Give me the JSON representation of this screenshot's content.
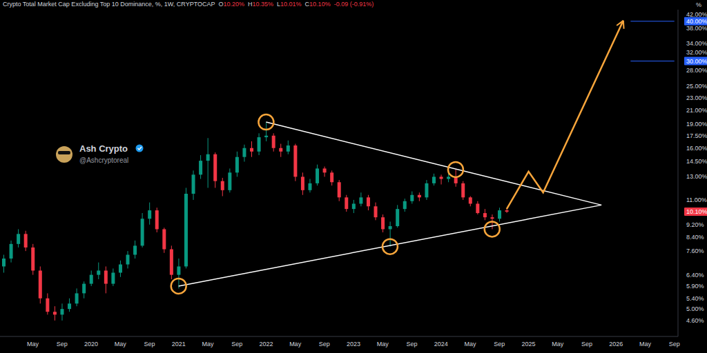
{
  "chart_data": {
    "type": "candlestick",
    "title": "Crypto Total Market Cap Excluding Top 10 Dominance, %, 1W, CRYPTOCAP",
    "header_values": [
      {
        "label": "O",
        "text": "10.20%"
      },
      {
        "label": "H",
        "text": "10.35%"
      },
      {
        "label": "L",
        "text": "10.01%"
      },
      {
        "label": "C",
        "text": "10.10%"
      },
      {
        "text": "-0.09 (-0.91%)"
      }
    ],
    "unit_label": "%",
    "watermark": {
      "name": "Ash Crypto",
      "handle": "@Ashcryptoreal"
    },
    "color": "#089981",
    "down_color": "#f23645",
    "log": "y",
    "grid": false,
    "x": [
      "2019-01",
      "2019-02",
      "2019-03",
      "2019-04",
      "2019-05",
      "2019-06",
      "2019-07",
      "2019-08",
      "2019-09",
      "2019-10",
      "2019-11",
      "2019-12",
      "2020-01",
      "2020-02",
      "2020-03",
      "2020-04",
      "2020-05",
      "2020-06",
      "2020-07",
      "2020-08",
      "2020-09",
      "2020-10",
      "2020-11",
      "2020-12",
      "2021-01",
      "2021-02",
      "2021-03",
      "2021-04",
      "2021-05",
      "2021-06",
      "2021-07",
      "2021-08",
      "2021-09",
      "2021-10",
      "2021-11",
      "2021-12",
      "2022-01",
      "2022-02",
      "2022-03",
      "2022-04",
      "2022-05",
      "2022-06",
      "2022-07",
      "2022-08",
      "2022-09",
      "2022-10",
      "2022-11",
      "2022-12",
      "2023-01",
      "2023-02",
      "2023-03",
      "2023-04",
      "2023-05",
      "2023-06",
      "2023-07",
      "2023-08",
      "2023-09",
      "2023-10",
      "2023-11",
      "2023-12",
      "2024-01",
      "2024-02",
      "2024-03",
      "2024-04",
      "2024-05",
      "2024-06",
      "2024-07",
      "2024-08",
      "2024-09",
      "2024-10"
    ],
    "open": [
      6.8,
      7.2,
      8.0,
      8.6,
      7.8,
      6.6,
      5.4,
      4.9,
      4.8,
      5.0,
      5.2,
      5.6,
      6.0,
      6.4,
      6.6,
      6.0,
      6.5,
      6.9,
      7.4,
      7.9,
      9.6,
      10.2,
      8.9,
      7.7,
      6.4,
      6.8,
      11.5,
      13.2,
      14.6,
      15.3,
      12.6,
      11.8,
      13.4,
      15.0,
      16.0,
      15.6,
      17.3,
      17.5,
      16.0,
      15.6,
      16.3,
      13.0,
      11.8,
      12.4,
      13.8,
      13.4,
      12.5,
      11.2,
      10.3,
      10.7,
      11.2,
      10.5,
      9.7,
      8.9,
      9.1,
      10.3,
      10.9,
      11.4,
      11.2,
      12.4,
      13.0,
      12.8,
      13.0,
      12.4,
      11.2,
      10.7,
      10.0,
      9.7,
      9.6,
      10.2
    ],
    "high": [
      7.4,
      8.2,
      8.9,
      8.8,
      8.0,
      6.8,
      5.6,
      5.1,
      5.2,
      5.4,
      5.8,
      6.1,
      6.6,
      7.0,
      6.8,
      6.7,
      7.1,
      7.6,
      8.2,
      10.0,
      10.8,
      10.4,
      9.0,
      7.9,
      7.2,
      12.0,
      13.6,
      15.2,
      17.2,
      15.5,
      12.9,
      13.8,
      15.6,
      16.4,
      16.8,
      17.8,
      19.3,
      17.8,
      16.5,
      16.9,
      16.5,
      13.4,
      12.8,
      14.2,
      14.0,
      13.6,
      12.7,
      11.4,
      11.0,
      11.6,
      11.4,
      10.8,
      9.9,
      9.4,
      10.6,
      11.1,
      11.7,
      11.6,
      12.7,
      13.3,
      13.2,
      13.4,
      13.7,
      12.6,
      11.3,
      10.9,
      10.3,
      9.9,
      10.4,
      10.35
    ],
    "low": [
      6.5,
      7.0,
      7.8,
      7.6,
      6.4,
      5.2,
      4.8,
      4.6,
      4.6,
      4.9,
      5.1,
      5.4,
      5.9,
      6.2,
      5.6,
      5.9,
      6.3,
      6.7,
      7.2,
      7.8,
      9.2,
      8.7,
      7.5,
      6.2,
      5.8,
      6.7,
      11.0,
      12.8,
      12.0,
      12.0,
      11.3,
      11.6,
      13.0,
      14.5,
      15.0,
      15.2,
      16.8,
      15.6,
      15.0,
      15.3,
      12.6,
      11.4,
      11.6,
      12.2,
      13.0,
      12.2,
      10.9,
      10.1,
      10.0,
      10.5,
      10.2,
      9.5,
      8.7,
      7.85,
      9.0,
      10.1,
      10.7,
      10.9,
      11.0,
      12.2,
      12.3,
      12.5,
      12.1,
      11.0,
      10.5,
      9.9,
      9.5,
      8.9,
      9.4,
      10.01
    ],
    "close": [
      7.2,
      8.0,
      8.6,
      7.8,
      6.6,
      5.4,
      4.9,
      4.8,
      5.0,
      5.2,
      5.6,
      6.0,
      6.4,
      6.6,
      6.0,
      6.5,
      6.9,
      7.4,
      7.9,
      9.6,
      10.2,
      8.9,
      7.7,
      6.4,
      6.8,
      11.5,
      13.2,
      14.6,
      15.3,
      12.6,
      11.8,
      13.4,
      15.0,
      16.0,
      15.6,
      17.3,
      17.5,
      16.0,
      15.6,
      16.3,
      13.0,
      11.8,
      12.4,
      13.8,
      13.4,
      12.5,
      11.2,
      10.3,
      10.7,
      11.2,
      10.5,
      9.7,
      8.9,
      9.1,
      10.3,
      10.9,
      11.4,
      11.2,
      12.4,
      13.0,
      12.8,
      13.0,
      12.4,
      11.2,
      10.7,
      10.0,
      9.7,
      9.6,
      10.2,
      10.1
    ],
    "series": [
      {
        "type": "line",
        "color": "#ffffff",
        "x": [
          "2022-01",
          "2025-11"
        ],
        "values": [
          19.3,
          10.6
        ]
      },
      {
        "type": "line",
        "color": "#ffffff",
        "x": [
          "2021-01",
          "2025-11"
        ],
        "values": [
          5.9,
          10.6
        ]
      },
      {
        "type": "scatter",
        "marker": "circle",
        "color": "#f7a53b",
        "x": [
          "2021-01",
          "2022-01",
          "2023-06",
          "2024-03",
          "2024-08"
        ],
        "values": [
          5.9,
          19.3,
          7.85,
          13.7,
          8.9
        ]
      },
      {
        "type": "line",
        "marker": "arrow",
        "color": "#f7a53b",
        "x": [
          "2024-10",
          "2025-01",
          "2025-03",
          "2026-02"
        ],
        "values": [
          10.3,
          13.5,
          11.6,
          40.2
        ]
      }
    ],
    "reference_lines": [
      {
        "value": 40,
        "label": "40.00%",
        "color": "#2962ff",
        "x_start": "2026-03"
      },
      {
        "value": 30,
        "label": "30.00%",
        "color": "#2962ff",
        "x_start": "2026-03"
      }
    ],
    "last_price": {
      "value": 10.1,
      "label": "10.10%",
      "color": "#f23645"
    },
    "xlim": [
      "2019-01",
      "2026-09"
    ],
    "xticks": [
      {
        "value": "2019-05",
        "label": "May"
      },
      {
        "value": "2019-09",
        "label": "Sep"
      },
      {
        "value": "2020-01",
        "label": "2020"
      },
      {
        "value": "2020-05",
        "label": "May"
      },
      {
        "value": "2020-09",
        "label": "Sep"
      },
      {
        "value": "2021-01",
        "label": "2021"
      },
      {
        "value": "2021-05",
        "label": "May"
      },
      {
        "value": "2021-09",
        "label": "Sep"
      },
      {
        "value": "2022-01",
        "label": "2022"
      },
      {
        "value": "2022-05",
        "label": "May"
      },
      {
        "value": "2022-09",
        "label": "Sep"
      },
      {
        "value": "2023-01",
        "label": "2023"
      },
      {
        "value": "2023-05",
        "label": "May"
      },
      {
        "value": "2023-09",
        "label": "Sep"
      },
      {
        "value": "2024-01",
        "label": "2024"
      },
      {
        "value": "2024-05",
        "label": "May"
      },
      {
        "value": "2024-09",
        "label": "Sep"
      },
      {
        "value": "2025-01",
        "label": "2025"
      },
      {
        "value": "2025-05",
        "label": "May"
      },
      {
        "value": "2025-09",
        "label": "Sep"
      },
      {
        "value": "2026-01",
        "label": "2026"
      },
      {
        "value": "2026-05",
        "label": "May"
      },
      {
        "value": "2026-09",
        "label": "Sep"
      }
    ],
    "ylim": [
      4.1,
      43.5
    ],
    "yticks": [
      {
        "value": 4.6,
        "label": "4.60%"
      },
      {
        "value": 5,
        "label": "5.00%"
      },
      {
        "value": 5.4,
        "label": "5.40%"
      },
      {
        "value": 5.9,
        "label": "5.90%"
      },
      {
        "value": 6.4,
        "label": "6.40%"
      },
      {
        "value": 7.6,
        "label": "7.60%"
      },
      {
        "value": 8.4,
        "label": "8.40%"
      },
      {
        "value": 9.2,
        "label": "9.20%"
      },
      {
        "value": 11,
        "label": "11.00%"
      },
      {
        "value": 13,
        "label": "13.00%"
      },
      {
        "value": 14.5,
        "label": "14.50%"
      },
      {
        "value": 16,
        "label": "16.00%"
      },
      {
        "value": 17.5,
        "label": "17.50%"
      },
      {
        "value": 19,
        "label": "19.00%"
      },
      {
        "value": 21,
        "label": "21.00%"
      },
      {
        "value": 23,
        "label": "23.00%"
      },
      {
        "value": 25,
        "label": "25.00%"
      },
      {
        "value": 28,
        "label": "28.00%"
      },
      {
        "value": 32,
        "label": "32.00%"
      },
      {
        "value": 34,
        "label": "34.00%"
      },
      {
        "value": 38,
        "label": "38.00%"
      },
      {
        "value": 42,
        "label": "42.00%"
      }
    ]
  }
}
